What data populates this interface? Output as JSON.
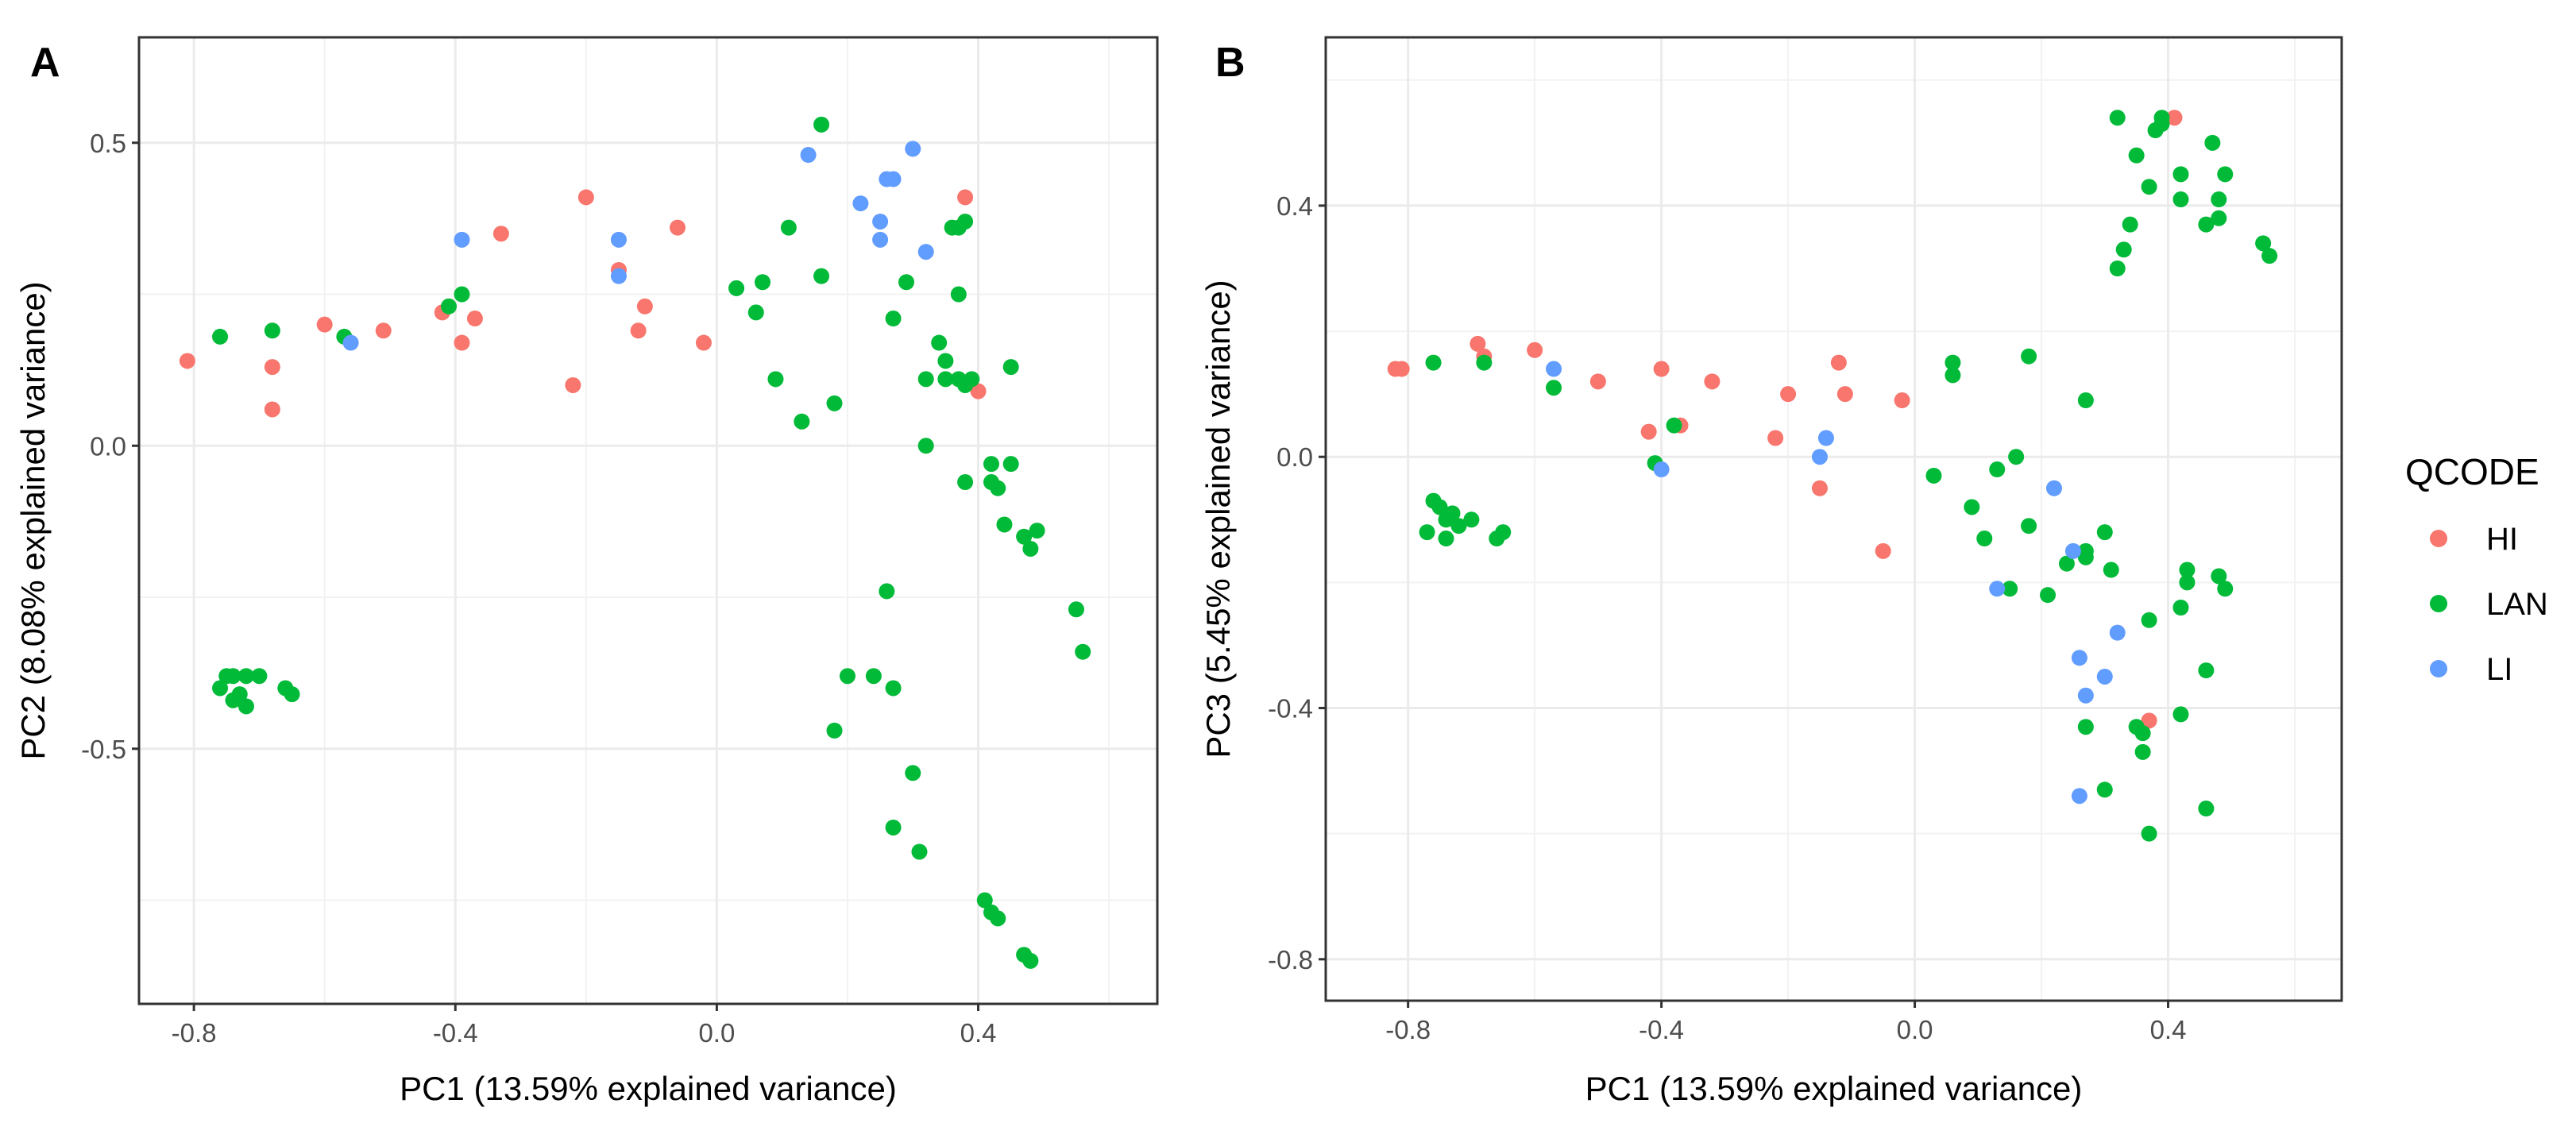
{
  "colors": {
    "HI": "#F8766D",
    "LAN": "#00BA38",
    "LI": "#619CFF"
  },
  "legend": {
    "title": "QCODE",
    "entries": [
      "HI",
      "LAN",
      "LI"
    ],
    "placement": "right"
  },
  "chart_data": [
    {
      "type": "scatter",
      "panel_label": "A",
      "xlabel": "PC1 (13.59% explained variance)",
      "ylabel": "PC2 (8.08% explained variance)",
      "xlim": [
        -0.884,
        0.674
      ],
      "ylim": [
        -0.921,
        0.674
      ],
      "xticks": [
        -0.8,
        -0.4,
        0.0,
        0.4
      ],
      "xtick_labels": [
        "-0.8",
        "-0.4",
        "0.0",
        "0.4"
      ],
      "yticks": [
        0.5,
        0.0,
        -0.5
      ],
      "ytick_labels": [
        "0.5",
        "0.0",
        "-0.5"
      ],
      "xminor": [
        -0.6,
        -0.2,
        0.2,
        0.6
      ],
      "yminor": [
        0.25,
        -0.25,
        -0.75
      ],
      "grid": true,
      "series": [
        {
          "name": "HI",
          "points": [
            [
              -0.81,
              0.14
            ],
            [
              -0.68,
              0.13
            ],
            [
              -0.68,
              0.06
            ],
            [
              -0.6,
              0.2
            ],
            [
              -0.51,
              0.19
            ],
            [
              -0.42,
              0.22
            ],
            [
              -0.39,
              0.17
            ],
            [
              -0.37,
              0.21
            ],
            [
              -0.33,
              0.35
            ],
            [
              -0.22,
              0.1
            ],
            [
              -0.2,
              0.41
            ],
            [
              -0.15,
              0.29
            ],
            [
              -0.12,
              0.19
            ],
            [
              -0.11,
              0.23
            ],
            [
              -0.06,
              0.36
            ],
            [
              -0.02,
              0.17
            ],
            [
              0.38,
              0.41
            ],
            [
              0.4,
              0.09
            ]
          ]
        },
        {
          "name": "LAN",
          "points": [
            [
              -0.76,
              0.18
            ],
            [
              -0.68,
              0.19
            ],
            [
              -0.57,
              0.18
            ],
            [
              -0.41,
              0.23
            ],
            [
              -0.39,
              0.25
            ],
            [
              -0.76,
              -0.4
            ],
            [
              -0.75,
              -0.38
            ],
            [
              -0.74,
              -0.38
            ],
            [
              -0.73,
              -0.41
            ],
            [
              -0.72,
              -0.38
            ],
            [
              -0.72,
              -0.43
            ],
            [
              -0.74,
              -0.42
            ],
            [
              -0.7,
              -0.38
            ],
            [
              -0.66,
              -0.4
            ],
            [
              -0.65,
              -0.41
            ],
            [
              0.03,
              0.26
            ],
            [
              0.06,
              0.22
            ],
            [
              0.07,
              0.27
            ],
            [
              0.09,
              0.11
            ],
            [
              0.11,
              0.36
            ],
            [
              0.13,
              0.04
            ],
            [
              0.16,
              0.53
            ],
            [
              0.16,
              0.28
            ],
            [
              0.18,
              0.07
            ],
            [
              0.27,
              0.21
            ],
            [
              0.29,
              0.27
            ],
            [
              0.32,
              0.11
            ],
            [
              0.32,
              0.0
            ],
            [
              0.34,
              0.17
            ],
            [
              0.35,
              0.14
            ],
            [
              0.35,
              0.11
            ],
            [
              0.36,
              0.36
            ],
            [
              0.37,
              0.36
            ],
            [
              0.37,
              0.25
            ],
            [
              0.37,
              0.11
            ],
            [
              0.38,
              0.37
            ],
            [
              0.38,
              0.1
            ],
            [
              0.39,
              0.11
            ],
            [
              0.45,
              0.13
            ],
            [
              0.38,
              -0.06
            ],
            [
              0.42,
              -0.03
            ],
            [
              0.42,
              -0.06
            ],
            [
              0.43,
              -0.07
            ],
            [
              0.45,
              -0.03
            ],
            [
              0.44,
              -0.13
            ],
            [
              0.47,
              -0.15
            ],
            [
              0.48,
              -0.17
            ],
            [
              0.49,
              -0.14
            ],
            [
              0.55,
              -0.27
            ],
            [
              0.56,
              -0.34
            ],
            [
              0.26,
              -0.24
            ],
            [
              0.2,
              -0.38
            ],
            [
              0.24,
              -0.38
            ],
            [
              0.27,
              -0.4
            ],
            [
              0.18,
              -0.47
            ],
            [
              0.3,
              -0.54
            ],
            [
              0.27,
              -0.63
            ],
            [
              0.31,
              -0.67
            ],
            [
              0.41,
              -0.75
            ],
            [
              0.42,
              -0.77
            ],
            [
              0.43,
              -0.78
            ],
            [
              0.47,
              -0.84
            ],
            [
              0.48,
              -0.85
            ]
          ]
        },
        {
          "name": "LI",
          "points": [
            [
              -0.39,
              0.34
            ],
            [
              -0.56,
              0.17
            ],
            [
              -0.15,
              0.28
            ],
            [
              -0.15,
              0.34
            ],
            [
              0.14,
              0.48
            ],
            [
              0.22,
              0.4
            ],
            [
              0.25,
              0.37
            ],
            [
              0.25,
              0.34
            ],
            [
              0.26,
              0.44
            ],
            [
              0.27,
              0.44
            ],
            [
              0.3,
              0.49
            ],
            [
              0.32,
              0.32
            ]
          ]
        }
      ]
    },
    {
      "type": "scatter",
      "panel_label": "B",
      "xlabel": "PC1 (13.59% explained variance)",
      "ylabel": "PC3 (5.45% explained variance)",
      "xlim": [
        -0.93,
        0.674
      ],
      "ylim": [
        -0.866,
        0.668
      ],
      "xticks": [
        -0.8,
        -0.4,
        0.0,
        0.4
      ],
      "xtick_labels": [
        "-0.8",
        "-0.4",
        "0.0",
        "0.4"
      ],
      "yticks": [
        0.4,
        0.0,
        -0.4,
        -0.8
      ],
      "ytick_labels": [
        "0.4",
        "0.0",
        "-0.4",
        "-0.8"
      ],
      "xminor": [
        -0.6,
        -0.2,
        0.2,
        0.6
      ],
      "yminor": [
        0.6,
        0.2,
        -0.2,
        -0.6
      ],
      "grid": true,
      "series": [
        {
          "name": "HI",
          "points": [
            [
              -0.82,
              0.14
            ],
            [
              -0.81,
              0.14
            ],
            [
              -0.69,
              0.18
            ],
            [
              -0.68,
              0.16
            ],
            [
              -0.6,
              0.17
            ],
            [
              -0.5,
              0.12
            ],
            [
              -0.42,
              0.04
            ],
            [
              -0.4,
              0.14
            ],
            [
              -0.37,
              0.05
            ],
            [
              -0.32,
              0.12
            ],
            [
              -0.22,
              0.03
            ],
            [
              -0.2,
              0.1
            ],
            [
              -0.15,
              -0.05
            ],
            [
              -0.12,
              0.15
            ],
            [
              -0.11,
              0.1
            ],
            [
              -0.05,
              -0.15
            ],
            [
              -0.02,
              0.09
            ],
            [
              0.41,
              0.54
            ],
            [
              0.37,
              -0.42
            ]
          ]
        },
        {
          "name": "LAN",
          "points": [
            [
              -0.76,
              -0.07
            ],
            [
              -0.75,
              -0.08
            ],
            [
              -0.74,
              -0.1
            ],
            [
              -0.73,
              -0.09
            ],
            [
              -0.72,
              -0.11
            ],
            [
              -0.77,
              -0.12
            ],
            [
              -0.74,
              -0.13
            ],
            [
              -0.7,
              -0.1
            ],
            [
              -0.66,
              -0.13
            ],
            [
              -0.65,
              -0.12
            ],
            [
              -0.76,
              0.15
            ],
            [
              -0.68,
              0.15
            ],
            [
              -0.57,
              0.11
            ],
            [
              -0.41,
              -0.01
            ],
            [
              -0.38,
              0.05
            ],
            [
              0.03,
              -0.03
            ],
            [
              0.06,
              0.13
            ],
            [
              0.06,
              0.15
            ],
            [
              0.09,
              -0.08
            ],
            [
              0.11,
              -0.13
            ],
            [
              0.13,
              -0.02
            ],
            [
              0.15,
              -0.21
            ],
            [
              0.16,
              0.0
            ],
            [
              0.18,
              0.16
            ],
            [
              0.18,
              -0.11
            ],
            [
              0.21,
              -0.22
            ],
            [
              0.24,
              -0.17
            ],
            [
              0.27,
              0.09
            ],
            [
              0.27,
              -0.15
            ],
            [
              0.27,
              -0.16
            ],
            [
              0.3,
              -0.12
            ],
            [
              0.31,
              -0.18
            ],
            [
              0.37,
              -0.26
            ],
            [
              0.42,
              -0.24
            ],
            [
              0.43,
              -0.18
            ],
            [
              0.43,
              -0.2
            ],
            [
              0.48,
              -0.19
            ],
            [
              0.49,
              -0.21
            ],
            [
              0.46,
              -0.34
            ],
            [
              0.42,
              -0.41
            ],
            [
              0.27,
              -0.43
            ],
            [
              0.35,
              -0.43
            ],
            [
              0.36,
              -0.44
            ],
            [
              0.36,
              -0.47
            ],
            [
              0.3,
              -0.53
            ],
            [
              0.46,
              -0.56
            ],
            [
              0.37,
              -0.6
            ],
            [
              0.32,
              0.54
            ],
            [
              0.38,
              0.52
            ],
            [
              0.39,
              0.53
            ],
            [
              0.39,
              0.54
            ],
            [
              0.47,
              0.5
            ],
            [
              0.35,
              0.48
            ],
            [
              0.42,
              0.45
            ],
            [
              0.49,
              0.45
            ],
            [
              0.37,
              0.43
            ],
            [
              0.42,
              0.41
            ],
            [
              0.48,
              0.41
            ],
            [
              0.48,
              0.38
            ],
            [
              0.46,
              0.37
            ],
            [
              0.34,
              0.37
            ],
            [
              0.33,
              0.33
            ],
            [
              0.32,
              0.3
            ],
            [
              0.55,
              0.34
            ],
            [
              0.56,
              0.32
            ]
          ]
        },
        {
          "name": "LI",
          "points": [
            [
              -0.57,
              0.14
            ],
            [
              -0.4,
              -0.02
            ],
            [
              -0.15,
              0.0
            ],
            [
              -0.14,
              0.03
            ],
            [
              0.13,
              -0.21
            ],
            [
              0.22,
              -0.05
            ],
            [
              0.25,
              -0.15
            ],
            [
              0.26,
              -0.32
            ],
            [
              0.27,
              -0.38
            ],
            [
              0.3,
              -0.35
            ],
            [
              0.32,
              -0.28
            ],
            [
              0.26,
              -0.54
            ]
          ]
        }
      ]
    }
  ]
}
